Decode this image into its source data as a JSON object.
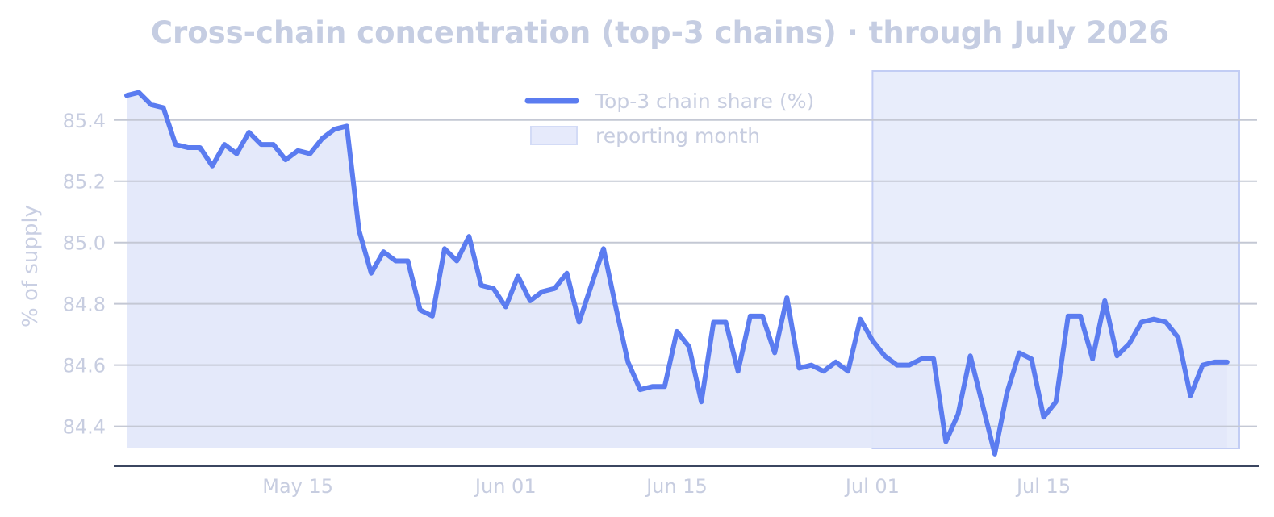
{
  "chart_data": {
    "type": "line",
    "title": "Cross-chain concentration (top-3 chains) · through July 2026",
    "xlabel": "",
    "ylabel": "% of supply",
    "x_start": "2026-05-01",
    "x_end": "2026-07-31",
    "xlim": [
      "2026-05-01",
      "2026-07-31"
    ],
    "ylim": [
      84.27,
      85.56
    ],
    "x_ticks": [
      {
        "date": "2026-05-15",
        "label": "May 15"
      },
      {
        "date": "2026-06-01",
        "label": "Jun 01"
      },
      {
        "date": "2026-06-15",
        "label": "Jun 15"
      },
      {
        "date": "2026-07-01",
        "label": "Jul 01"
      },
      {
        "date": "2026-07-15",
        "label": "Jul 15"
      }
    ],
    "y_ticks": [
      {
        "value": 84.4,
        "label": "84.4"
      },
      {
        "value": 84.6,
        "label": "84.6"
      },
      {
        "value": 84.8,
        "label": "84.8"
      },
      {
        "value": 85.0,
        "label": "85.0"
      },
      {
        "value": 85.2,
        "label": "85.2"
      },
      {
        "value": 85.4,
        "label": "85.4"
      }
    ],
    "grid": "horizontal",
    "legend_position": "top-center",
    "series": [
      {
        "name": "Top-3 chain share (%)",
        "color": "#5b7cf0",
        "fill": true,
        "values": [
          85.48,
          85.49,
          85.45,
          85.44,
          85.32,
          85.31,
          85.31,
          85.25,
          85.32,
          85.29,
          85.36,
          85.32,
          85.32,
          85.27,
          85.3,
          85.29,
          85.34,
          85.37,
          85.38,
          85.04,
          84.9,
          84.97,
          84.94,
          84.94,
          84.78,
          84.76,
          84.98,
          84.94,
          85.02,
          84.86,
          84.85,
          84.79,
          84.89,
          84.81,
          84.84,
          84.85,
          84.9,
          84.74,
          84.86,
          84.98,
          84.79,
          84.61,
          84.52,
          84.53,
          84.53,
          84.71,
          84.66,
          84.48,
          84.74,
          84.74,
          84.58,
          84.76,
          84.76,
          84.64,
          84.82,
          84.59,
          84.6,
          84.58,
          84.61,
          84.58,
          84.75,
          84.68,
          84.63,
          84.6,
          84.6,
          84.62,
          84.62,
          84.35,
          84.44,
          84.63,
          84.47,
          84.31,
          84.51,
          84.64,
          84.62,
          84.43,
          84.48,
          84.76,
          84.76,
          84.62,
          84.81,
          84.63,
          84.67,
          84.74,
          84.75,
          84.74,
          84.69,
          84.5,
          84.6,
          84.61,
          84.61
        ]
      }
    ],
    "shaded_region": {
      "label": "reporting month",
      "start": "2026-07-01",
      "end": "2026-07-31",
      "color": "#c9d3f5"
    },
    "colors": {
      "line": "#5b7cf0",
      "area_fill": "#e3e8fa",
      "span_fill": "#c9d3f5",
      "grid": "#c4c8d4",
      "axis": "#3b4660",
      "text": "#c5cde2"
    }
  }
}
